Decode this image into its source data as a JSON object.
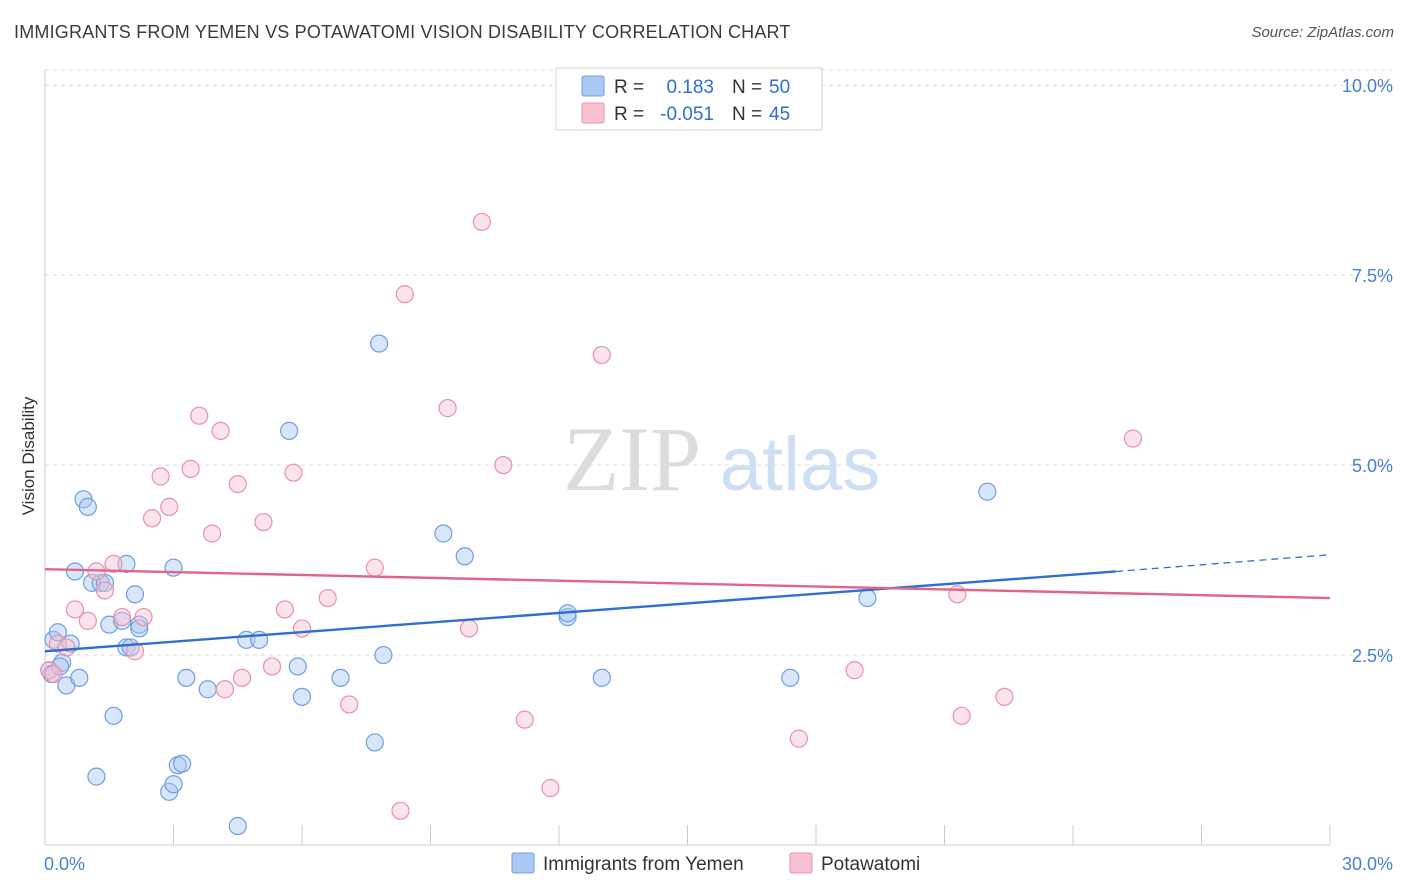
{
  "title": "IMMIGRANTS FROM YEMEN VS POTAWATOMI VISION DISABILITY CORRELATION CHART",
  "source": "Source: ZipAtlas.com",
  "watermark": {
    "zip": "ZIP",
    "atlas": "atlas"
  },
  "legend_top": [
    {
      "r_label": "R =",
      "r_value": "0.183",
      "n_label": "N =",
      "n_value": "50",
      "color": "#a9c8f2",
      "border": "#6f9fe0"
    },
    {
      "r_label": "R =",
      "r_value": "-0.051",
      "n_label": "N =",
      "n_value": "45",
      "color": "#f7c1d0",
      "border": "#e891ab"
    }
  ],
  "legend_bottom": [
    {
      "label": "Immigrants from Yemen",
      "color": "#a9c8f2",
      "border": "#6f9fe0"
    },
    {
      "label": "Potawatomi",
      "color": "#f7c1d0",
      "border": "#e891ab"
    }
  ],
  "chart_data": {
    "type": "scatter",
    "title": "IMMIGRANTS FROM YEMEN VS POTAWATOMI VISION DISABILITY CORRELATION CHART",
    "xlabel": "",
    "ylabel": "Vision Disability",
    "xlim": [
      0,
      30
    ],
    "ylim": [
      0,
      10.2
    ],
    "x_tick_labels": [
      "0.0%",
      "30.0%"
    ],
    "y_ticks": [
      2.5,
      5.0,
      7.5,
      10.0
    ],
    "y_tick_labels": [
      "2.5%",
      "5.0%",
      "7.5%",
      "10.0%"
    ],
    "grid": true,
    "legend_position": "top-center",
    "series": [
      {
        "name": "Immigrants from Yemen",
        "color": "#6f9fe0",
        "fill": "#a9c8f2",
        "trend_color": "#2f6fd0",
        "trend": {
          "x0": 0,
          "y0": 2.55,
          "x1": 25,
          "y1": 3.6,
          "dash_to_x": 30,
          "dash_to_y": 3.82
        },
        "points": [
          [
            0.1,
            2.3
          ],
          [
            0.2,
            2.7
          ],
          [
            0.3,
            2.8
          ],
          [
            0.4,
            2.4
          ],
          [
            0.5,
            2.1
          ],
          [
            0.6,
            2.65
          ],
          [
            0.7,
            3.6
          ],
          [
            0.8,
            2.2
          ],
          [
            0.9,
            4.55
          ],
          [
            1.0,
            4.45
          ],
          [
            1.1,
            3.45
          ],
          [
            1.2,
            0.9
          ],
          [
            1.3,
            3.45
          ],
          [
            1.4,
            3.45
          ],
          [
            1.5,
            2.9
          ],
          [
            1.6,
            1.7
          ],
          [
            1.8,
            2.95
          ],
          [
            1.9,
            3.7
          ],
          [
            1.9,
            2.6
          ],
          [
            2.0,
            2.6
          ],
          [
            2.1,
            3.3
          ],
          [
            2.2,
            2.9
          ],
          [
            2.9,
            0.7
          ],
          [
            3.0,
            0.8
          ],
          [
            3.1,
            1.05
          ],
          [
            3.2,
            1.07
          ],
          [
            3.0,
            3.65
          ],
          [
            3.3,
            2.2
          ],
          [
            3.8,
            2.05
          ],
          [
            4.5,
            0.25
          ],
          [
            4.7,
            2.7
          ],
          [
            5.0,
            2.7
          ],
          [
            5.7,
            5.45
          ],
          [
            5.9,
            2.35
          ],
          [
            6.0,
            1.95
          ],
          [
            6.9,
            2.2
          ],
          [
            7.7,
            1.35
          ],
          [
            7.8,
            6.6
          ],
          [
            7.9,
            2.5
          ],
          [
            9.3,
            4.1
          ],
          [
            9.8,
            3.8
          ],
          [
            12.2,
            3.0
          ],
          [
            13.0,
            2.2
          ],
          [
            17.4,
            2.2
          ],
          [
            19.2,
            3.25
          ],
          [
            22.0,
            4.65
          ],
          [
            0.15,
            2.25
          ],
          [
            0.35,
            2.35
          ],
          [
            2.2,
            2.85
          ],
          [
            12.2,
            3.05
          ]
        ]
      },
      {
        "name": "Potawatomi",
        "color": "#e891ab",
        "fill": "#f7c1d0",
        "trend_color": "#e0648c",
        "trend": {
          "x0": 0,
          "y0": 3.63,
          "x1": 30,
          "y1": 3.25
        },
        "points": [
          [
            0.1,
            2.3
          ],
          [
            0.2,
            2.25
          ],
          [
            0.3,
            2.65
          ],
          [
            0.5,
            2.6
          ],
          [
            0.7,
            3.1
          ],
          [
            1.0,
            2.95
          ],
          [
            1.2,
            3.6
          ],
          [
            1.4,
            3.35
          ],
          [
            1.6,
            3.7
          ],
          [
            1.8,
            3.0
          ],
          [
            2.1,
            2.55
          ],
          [
            2.3,
            3.0
          ],
          [
            2.5,
            4.3
          ],
          [
            2.7,
            4.85
          ],
          [
            2.9,
            4.45
          ],
          [
            3.4,
            4.95
          ],
          [
            3.6,
            5.65
          ],
          [
            3.9,
            4.1
          ],
          [
            4.1,
            5.45
          ],
          [
            4.2,
            2.05
          ],
          [
            4.5,
            4.75
          ],
          [
            4.6,
            2.2
          ],
          [
            5.1,
            4.25
          ],
          [
            5.3,
            2.35
          ],
          [
            5.6,
            3.1
          ],
          [
            5.8,
            4.9
          ],
          [
            6.0,
            2.85
          ],
          [
            6.6,
            3.25
          ],
          [
            7.1,
            1.85
          ],
          [
            7.7,
            3.65
          ],
          [
            8.4,
            7.25
          ],
          [
            8.3,
            0.45
          ],
          [
            9.4,
            5.75
          ],
          [
            9.9,
            2.85
          ],
          [
            10.2,
            8.2
          ],
          [
            10.7,
            5.0
          ],
          [
            11.2,
            1.65
          ],
          [
            11.8,
            0.75
          ],
          [
            13.0,
            6.45
          ],
          [
            17.6,
            1.4
          ],
          [
            18.9,
            2.3
          ],
          [
            21.3,
            3.3
          ],
          [
            21.4,
            1.7
          ],
          [
            22.4,
            1.95
          ],
          [
            25.4,
            5.35
          ]
        ]
      }
    ]
  }
}
